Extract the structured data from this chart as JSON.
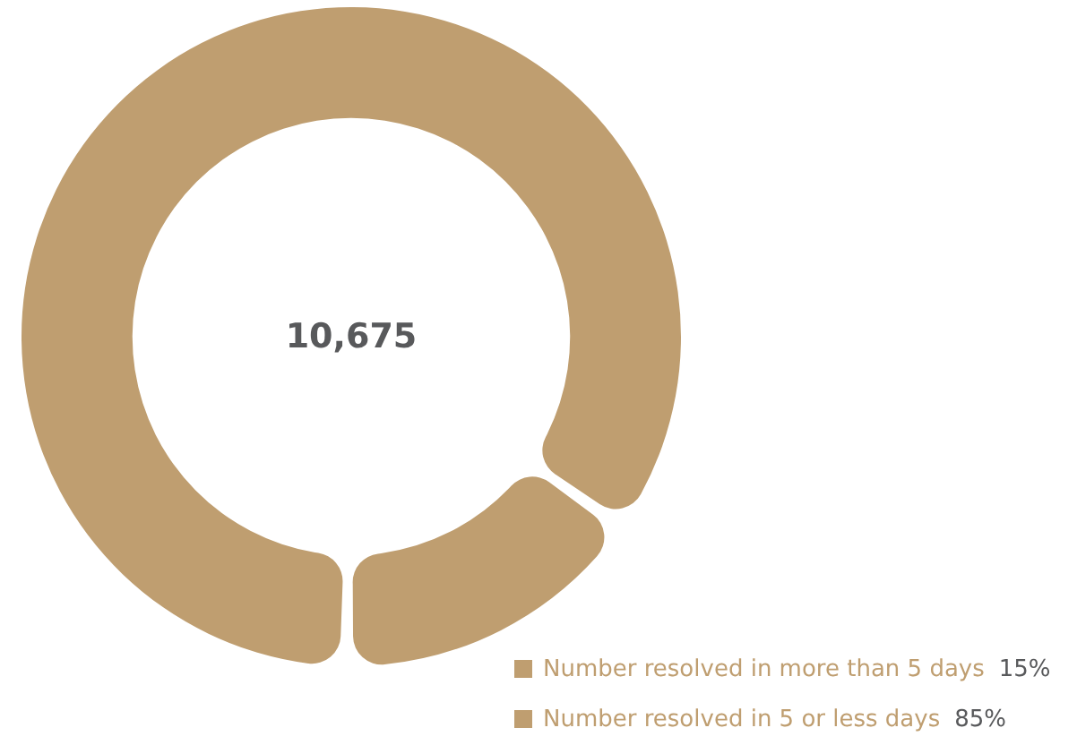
{
  "chart_data": {
    "type": "donut",
    "categories": [
      "Number resolved in more than 5 days",
      "Number resolved in 5 or less days"
    ],
    "values": [
      15,
      85
    ],
    "colors": [
      "#bf9e70",
      "#bf9e70"
    ],
    "value_labels": [
      "15%",
      "85%"
    ],
    "annotations": [
      "10,675"
    ],
    "legend": "bottom right"
  }
}
